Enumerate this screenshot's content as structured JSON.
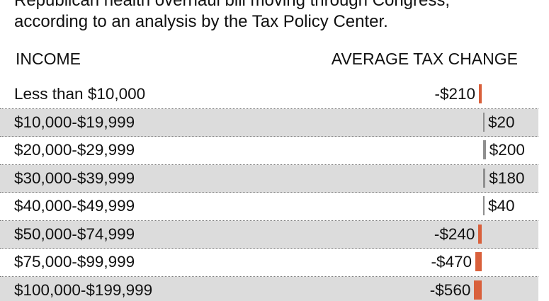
{
  "intro": {
    "line1": "Republican health overhaul bill moving through Congress,",
    "line2": "according to an analysis by the Tax Policy Center."
  },
  "colors": {
    "negative": "#d9603b",
    "positive": "#8f8f8f",
    "shaded_row": "#dcdcdc"
  },
  "chart_data": {
    "type": "bar",
    "orientation": "horizontal",
    "xlabel": "INCOME",
    "ylabel": "AVERAGE TAX CHANGE",
    "categories": [
      "Less than $10,000",
      "$10,000-$19,999",
      "$20,000-$29,999",
      "$30,000-$39,999",
      "$40,000-$49,999",
      "$50,000-$74,999",
      "$75,000-$99,999",
      "$100,000-$199,999"
    ],
    "values": [
      -210,
      20,
      200,
      180,
      40,
      -240,
      -470,
      -560
    ],
    "value_labels": [
      "-$210",
      "$20",
      "$200",
      "$180",
      "$40",
      "-$240",
      "-$470",
      "-$560"
    ]
  }
}
